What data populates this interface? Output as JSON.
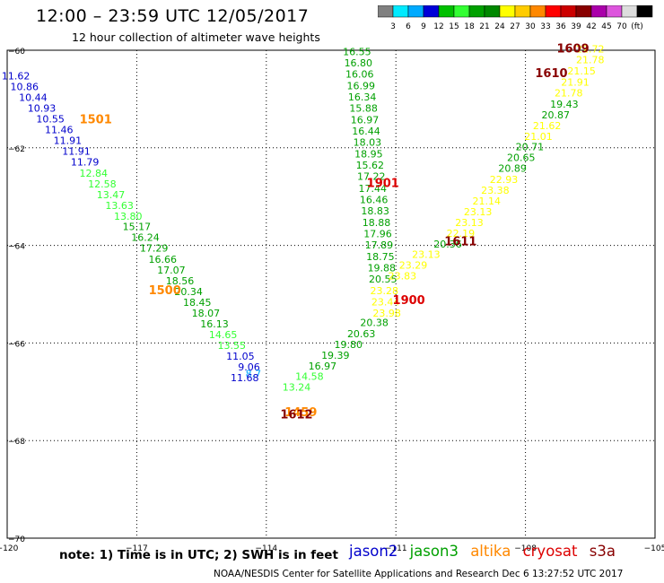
{
  "title": "12:00 – 23:59 UTC 12/05/2017",
  "subtitle": "12 hour collection of altimeter wave heights",
  "colorbar": {
    "colors": [
      "#808080",
      "#00eaff",
      "#00aaff",
      "#0000d8",
      "#00c000",
      "#33ff33",
      "#00a000",
      "#008800",
      "#ffff00",
      "#ffcc00",
      "#ff8800",
      "#ff0000",
      "#cc0000",
      "#880000",
      "#aa00aa",
      "#dd55dd",
      "#dddddd",
      "#000000"
    ],
    "labels": [
      "3",
      "6",
      "9",
      "12",
      "15",
      "18",
      "21",
      "24",
      "27",
      "30",
      "33",
      "36",
      "39",
      "42",
      "45",
      "70",
      "(ft)"
    ]
  },
  "note": "note: 1) Time is in UTC; 2) SWH is in feet",
  "legend": [
    {
      "name": "jason2",
      "color": "#0000cc"
    },
    {
      "name": "jason3",
      "color": "#00a000"
    },
    {
      "name": "altika",
      "color": "#ff8800"
    },
    {
      "name": "cryosat",
      "color": "#dd0000"
    },
    {
      "name": "s3a",
      "color": "#880000"
    }
  ],
  "footer": "NOAA/NESDIS Center for Satellite Applications and Research    Dec  6 13:27:52 UTC 2017",
  "chart_data": {
    "type": "scatter",
    "xlim": [
      -120,
      -105
    ],
    "ylim": [
      -70,
      -60
    ],
    "xticks": [
      -120,
      -117,
      -114,
      -111,
      -108,
      -105
    ],
    "yticks": [
      -60,
      -62,
      -64,
      -66,
      -68,
      -70
    ],
    "grid": true,
    "track_labels": [
      {
        "text": "1501",
        "x": -117.95,
        "y": -61.5,
        "color": "#ff8800"
      },
      {
        "text": "1500",
        "x": -116.35,
        "y": -65.0,
        "color": "#ff8800"
      },
      {
        "text": "1459",
        "x": -113.2,
        "y": -67.5,
        "color": "#ff8800"
      },
      {
        "text": "1612",
        "x": -113.3,
        "y": -67.55,
        "color": "#880000"
      },
      {
        "text": "1901",
        "x": -111.3,
        "y": -62.8,
        "color": "#dd0000"
      },
      {
        "text": "1900",
        "x": -110.7,
        "y": -65.2,
        "color": "#dd0000"
      },
      {
        "text": "1611",
        "x": -109.5,
        "y": -64.0,
        "color": "#880000"
      },
      {
        "text": "1610",
        "x": -107.4,
        "y": -60.55,
        "color": "#880000"
      },
      {
        "text": "1609",
        "x": -106.9,
        "y": -60.05,
        "color": "#880000"
      }
    ],
    "points": [
      {
        "x": -119.8,
        "y": -60.6,
        "v": "11.62",
        "c": "#0000cc"
      },
      {
        "x": -119.6,
        "y": -60.82,
        "v": "10.86",
        "c": "#0000cc"
      },
      {
        "x": -119.4,
        "y": -61.04,
        "v": "10.44",
        "c": "#0000cc"
      },
      {
        "x": -119.2,
        "y": -61.26,
        "v": "10.93",
        "c": "#0000cc"
      },
      {
        "x": -119.0,
        "y": -61.48,
        "v": "10.55",
        "c": "#0000cc"
      },
      {
        "x": -118.8,
        "y": -61.7,
        "v": "11.46",
        "c": "#0000cc"
      },
      {
        "x": -118.6,
        "y": -61.92,
        "v": "11.91",
        "c": "#0000cc"
      },
      {
        "x": -118.4,
        "y": -62.14,
        "v": "11.91",
        "c": "#0000cc"
      },
      {
        "x": -118.2,
        "y": -62.36,
        "v": "11.79",
        "c": "#0000cc"
      },
      {
        "x": -118.0,
        "y": -62.59,
        "v": "12.84",
        "c": "#33ff33"
      },
      {
        "x": -117.8,
        "y": -62.81,
        "v": "12.58",
        "c": "#33ff33"
      },
      {
        "x": -117.6,
        "y": -63.03,
        "v": "13.47",
        "c": "#33ff33"
      },
      {
        "x": -117.4,
        "y": -63.25,
        "v": "13.63",
        "c": "#33ff33"
      },
      {
        "x": -117.2,
        "y": -63.47,
        "v": "13.80",
        "c": "#33ff33"
      },
      {
        "x": -117.0,
        "y": -63.69,
        "v": "15.17",
        "c": "#00a000"
      },
      {
        "x": -116.8,
        "y": -63.91,
        "v": "16.24",
        "c": "#00a000"
      },
      {
        "x": -116.6,
        "y": -64.13,
        "v": "17.29",
        "c": "#00a000"
      },
      {
        "x": -116.4,
        "y": -64.36,
        "v": "16.66",
        "c": "#00a000"
      },
      {
        "x": -116.2,
        "y": -64.58,
        "v": "17.07",
        "c": "#00a000"
      },
      {
        "x": -116.0,
        "y": -64.8,
        "v": "18.56",
        "c": "#00a000"
      },
      {
        "x": -115.8,
        "y": -65.02,
        "v": "20.34",
        "c": "#00a000"
      },
      {
        "x": -115.6,
        "y": -65.24,
        "v": "18.45",
        "c": "#00a000"
      },
      {
        "x": -115.4,
        "y": -65.46,
        "v": "18.07",
        "c": "#00a000"
      },
      {
        "x": -115.2,
        "y": -65.68,
        "v": "16.13",
        "c": "#00a000"
      },
      {
        "x": -115.0,
        "y": -65.9,
        "v": "14.65",
        "c": "#33ff33"
      },
      {
        "x": -114.8,
        "y": -66.12,
        "v": "13.55",
        "c": "#33ff33"
      },
      {
        "x": -114.6,
        "y": -66.34,
        "v": "11.05",
        "c": "#0000cc"
      },
      {
        "x": -114.4,
        "y": -66.56,
        "v": "9.06",
        "c": "#0000cc"
      },
      {
        "x": -114.3,
        "y": -66.7,
        "v": "8.7",
        "c": "#00aaff"
      },
      {
        "x": -114.5,
        "y": -66.78,
        "v": "11.68",
        "c": "#0000cc"
      },
      {
        "x": -111.9,
        "y": -60.1,
        "v": "16.55",
        "c": "#00a000"
      },
      {
        "x": -111.87,
        "y": -60.33,
        "v": "16.80",
        "c": "#00a000"
      },
      {
        "x": -111.84,
        "y": -60.56,
        "v": "16.06",
        "c": "#00a000"
      },
      {
        "x": -111.81,
        "y": -60.8,
        "v": "16.99",
        "c": "#00a000"
      },
      {
        "x": -111.78,
        "y": -61.03,
        "v": "16.34",
        "c": "#00a000"
      },
      {
        "x": -111.75,
        "y": -61.26,
        "v": "15.88",
        "c": "#00a000"
      },
      {
        "x": -111.72,
        "y": -61.5,
        "v": "16.97",
        "c": "#00a000"
      },
      {
        "x": -111.69,
        "y": -61.73,
        "v": "16.44",
        "c": "#00a000"
      },
      {
        "x": -111.66,
        "y": -61.96,
        "v": "18.03",
        "c": "#00a000"
      },
      {
        "x": -111.63,
        "y": -62.2,
        "v": "18.95",
        "c": "#00a000"
      },
      {
        "x": -111.6,
        "y": -62.43,
        "v": "15.62",
        "c": "#00a000"
      },
      {
        "x": -111.57,
        "y": -62.66,
        "v": "17.22",
        "c": "#00a000"
      },
      {
        "x": -111.54,
        "y": -62.9,
        "v": "17.44",
        "c": "#00a000"
      },
      {
        "x": -111.51,
        "y": -63.13,
        "v": "16.46",
        "c": "#00a000"
      },
      {
        "x": -111.48,
        "y": -63.36,
        "v": "18.83",
        "c": "#00a000"
      },
      {
        "x": -111.45,
        "y": -63.6,
        "v": "18.88",
        "c": "#00a000"
      },
      {
        "x": -111.42,
        "y": -63.83,
        "v": "17.96",
        "c": "#00a000"
      },
      {
        "x": -111.39,
        "y": -64.06,
        "v": "17.89",
        "c": "#00a000"
      },
      {
        "x": -111.36,
        "y": -64.3,
        "v": "18.75",
        "c": "#00a000"
      },
      {
        "x": -111.33,
        "y": -64.53,
        "v": "19.88",
        "c": "#00a000"
      },
      {
        "x": -111.3,
        "y": -64.76,
        "v": "20.55",
        "c": "#00a000"
      },
      {
        "x": -111.27,
        "y": -65.0,
        "v": "23.28",
        "c": "#ffff00"
      },
      {
        "x": -111.24,
        "y": -65.23,
        "v": "23.44",
        "c": "#ffff00"
      },
      {
        "x": -111.21,
        "y": -65.46,
        "v": "23.98",
        "c": "#ffff00"
      },
      {
        "x": -111.5,
        "y": -65.65,
        "v": "20.38",
        "c": "#00a000"
      },
      {
        "x": -111.8,
        "y": -65.88,
        "v": "20.63",
        "c": "#00a000"
      },
      {
        "x": -112.1,
        "y": -66.1,
        "v": "19.80",
        "c": "#00a000"
      },
      {
        "x": -112.4,
        "y": -66.32,
        "v": "19.39",
        "c": "#00a000"
      },
      {
        "x": -112.7,
        "y": -66.54,
        "v": "16.97",
        "c": "#00a000"
      },
      {
        "x": -113.0,
        "y": -66.76,
        "v": "14.58",
        "c": "#33ff33"
      },
      {
        "x": -113.3,
        "y": -66.98,
        "v": "13.24",
        "c": "#33ff33"
      },
      {
        "x": -106.5,
        "y": -60.05,
        "v": "22.72",
        "c": "#ffff00"
      },
      {
        "x": -106.5,
        "y": -60.27,
        "v": "21.78",
        "c": "#ffff00"
      },
      {
        "x": -106.7,
        "y": -60.5,
        "v": "21.15",
        "c": "#ffff00"
      },
      {
        "x": -106.85,
        "y": -60.73,
        "v": "21.91",
        "c": "#ffff00"
      },
      {
        "x": -107.0,
        "y": -60.95,
        "v": "21.78",
        "c": "#ffff00"
      },
      {
        "x": -107.1,
        "y": -61.18,
        "v": "19.43",
        "c": "#00a000"
      },
      {
        "x": -107.3,
        "y": -61.4,
        "v": "20.87",
        "c": "#00a000"
      },
      {
        "x": -107.5,
        "y": -61.62,
        "v": "21.62",
        "c": "#ffff00"
      },
      {
        "x": -107.7,
        "y": -61.84,
        "v": "21.01",
        "c": "#ffff00"
      },
      {
        "x": -107.9,
        "y": -62.05,
        "v": "20.71",
        "c": "#00a000"
      },
      {
        "x": -108.1,
        "y": -62.27,
        "v": "20.65",
        "c": "#00a000"
      },
      {
        "x": -108.3,
        "y": -62.49,
        "v": "20.89",
        "c": "#00a000"
      },
      {
        "x": -108.5,
        "y": -62.72,
        "v": "22.93",
        "c": "#ffff00"
      },
      {
        "x": -108.7,
        "y": -62.94,
        "v": "23.38",
        "c": "#ffff00"
      },
      {
        "x": -108.9,
        "y": -63.16,
        "v": "21.14",
        "c": "#ffff00"
      },
      {
        "x": -109.1,
        "y": -63.38,
        "v": "23.13",
        "c": "#ffff00"
      },
      {
        "x": -109.3,
        "y": -63.6,
        "v": "23.13",
        "c": "#ffff00"
      },
      {
        "x": -109.5,
        "y": -63.82,
        "v": "22.19",
        "c": "#ffff00"
      },
      {
        "x": -109.8,
        "y": -64.04,
        "v": "20.36",
        "c": "#00a000"
      },
      {
        "x": -110.3,
        "y": -64.26,
        "v": "23.13",
        "c": "#ffff00"
      },
      {
        "x": -110.6,
        "y": -64.48,
        "v": "23.29",
        "c": "#ffff00"
      },
      {
        "x": -110.85,
        "y": -64.7,
        "v": "23.83",
        "c": "#ffff00"
      }
    ]
  }
}
